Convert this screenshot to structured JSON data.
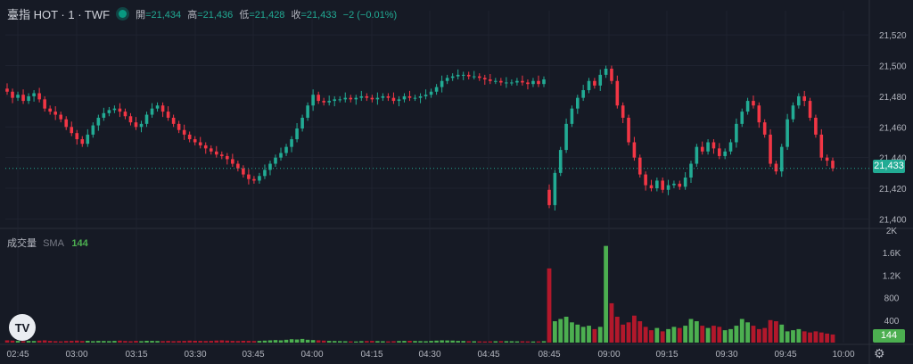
{
  "header": {
    "symbol": "臺指 HOT · 1 · TWF",
    "open_label": "開",
    "open": "=21,434",
    "high_label": "高",
    "high": "=21,436",
    "low_label": "低",
    "low": "=21,428",
    "close_label": "收",
    "close": "=21,433",
    "change": "−2 (−0.01%)"
  },
  "volume_header": {
    "label": "成交量",
    "sma_label": "SMA",
    "sma_value": "144"
  },
  "last_price_label": "21,433",
  "last_volume_label": "144",
  "logo_text": "TV",
  "icons": {
    "live": "live-dot-icon",
    "settings": "gear-icon",
    "logo": "tradingview-logo"
  },
  "colors": {
    "up": "#22ab94",
    "down": "#f23645",
    "vol_up": "#4caf50",
    "vol_down": "#b2182b",
    "bg": "#161a25",
    "grid": "#2a2e39"
  },
  "chart_data": {
    "type": "candlestick",
    "ylim": [
      21395,
      21530
    ],
    "y_ticks": [
      "21,400",
      "21,420",
      "21,440",
      "21,460",
      "21,480",
      "21,500",
      "21,520"
    ],
    "last_price": 21433,
    "volume_ylim": [
      0,
      2000
    ],
    "volume_ticks": [
      "400",
      "800",
      "1.2K",
      "1.6K",
      "2K"
    ],
    "x_ticks": [
      "02:45",
      "03:00",
      "03:15",
      "03:30",
      "03:45",
      "04:00",
      "04:15",
      "04:30",
      "04:45",
      "08:45",
      "09:00",
      "09:15",
      "09:30",
      "09:45",
      "10:00"
    ],
    "night_session": [
      21483,
      21479,
      21481,
      21477,
      21480,
      21482,
      21478,
      21472,
      21470,
      21468,
      21465,
      21460,
      21456,
      21452,
      21449,
      21455,
      21461,
      21466,
      21469,
      21471,
      21472,
      21470,
      21467,
      21463,
      21460,
      21462,
      21468,
      21472,
      21474,
      21470,
      21466,
      21462,
      21458,
      21455,
      21452,
      21450,
      21448,
      21446,
      21444,
      21442,
      21441,
      21439,
      21436,
      21433,
      21429,
      21426,
      21425,
      21428,
      21432,
      21436,
      21440,
      21443,
      21447,
      21452,
      21459,
      21466,
      21474,
      21481,
      21477,
      21476,
      21477,
      21478,
      21478,
      21479,
      21478,
      21479,
      21480,
      21479,
      21478,
      21479,
      21480,
      21479,
      21477,
      21478,
      21480,
      21479,
      21479,
      21480,
      21481,
      21483,
      21486,
      21490,
      21492,
      21493,
      21494,
      21494,
      21493,
      21493,
      21492,
      21491,
      21490,
      21490,
      21489,
      21489,
      21489,
      21490,
      21489,
      21488,
      21490,
      21488,
      21491
    ],
    "day_session": [
      21409,
      21430,
      21445,
      21462,
      21472,
      21479,
      21484,
      21490,
      21487,
      21494,
      21498,
      21490,
      21474,
      21466,
      21450,
      21440,
      21429,
      21422,
      21420,
      21425,
      21419,
      21422,
      21423,
      21421,
      21427,
      21436,
      21447,
      21444,
      21450,
      21446,
      21441,
      21444,
      21450,
      21462,
      21470,
      21477,
      21474,
      21463,
      21455,
      21436,
      21431,
      21447,
      21465,
      21474,
      21480,
      21477,
      21466,
      21455,
      21440,
      21438,
      21433
    ],
    "night_volume": [
      40,
      35,
      30,
      25,
      30,
      28,
      35,
      40,
      30,
      25,
      22,
      28,
      30,
      35,
      28,
      32,
      25,
      30,
      28,
      26,
      30,
      35,
      28,
      24,
      30,
      25,
      32,
      30,
      28,
      26,
      30,
      25,
      28,
      30,
      35,
      32,
      30,
      28,
      30,
      36,
      40,
      35,
      30,
      28,
      32,
      30,
      28,
      30,
      35,
      40,
      45,
      40,
      50,
      60,
      55,
      65,
      50,
      45,
      40,
      35,
      30,
      28,
      26,
      24,
      22,
      20,
      25,
      28,
      30,
      26,
      24,
      22,
      25,
      28,
      30,
      32,
      28,
      26,
      24,
      30,
      35,
      40,
      38,
      36,
      30,
      28,
      25,
      24,
      22,
      20,
      22,
      24,
      26,
      25,
      24,
      22,
      24,
      22,
      20,
      22,
      25
    ],
    "day_volume": [
      1320,
      380,
      420,
      460,
      360,
      320,
      280,
      300,
      240,
      280,
      1720,
      700,
      460,
      320,
      360,
      480,
      380,
      280,
      220,
      260,
      200,
      240,
      280,
      260,
      300,
      420,
      380,
      300,
      260,
      300,
      280,
      220,
      240,
      300,
      420,
      360,
      300,
      240,
      260,
      400,
      380,
      320,
      200,
      220,
      240,
      200,
      180,
      200,
      180,
      160,
      144
    ]
  }
}
